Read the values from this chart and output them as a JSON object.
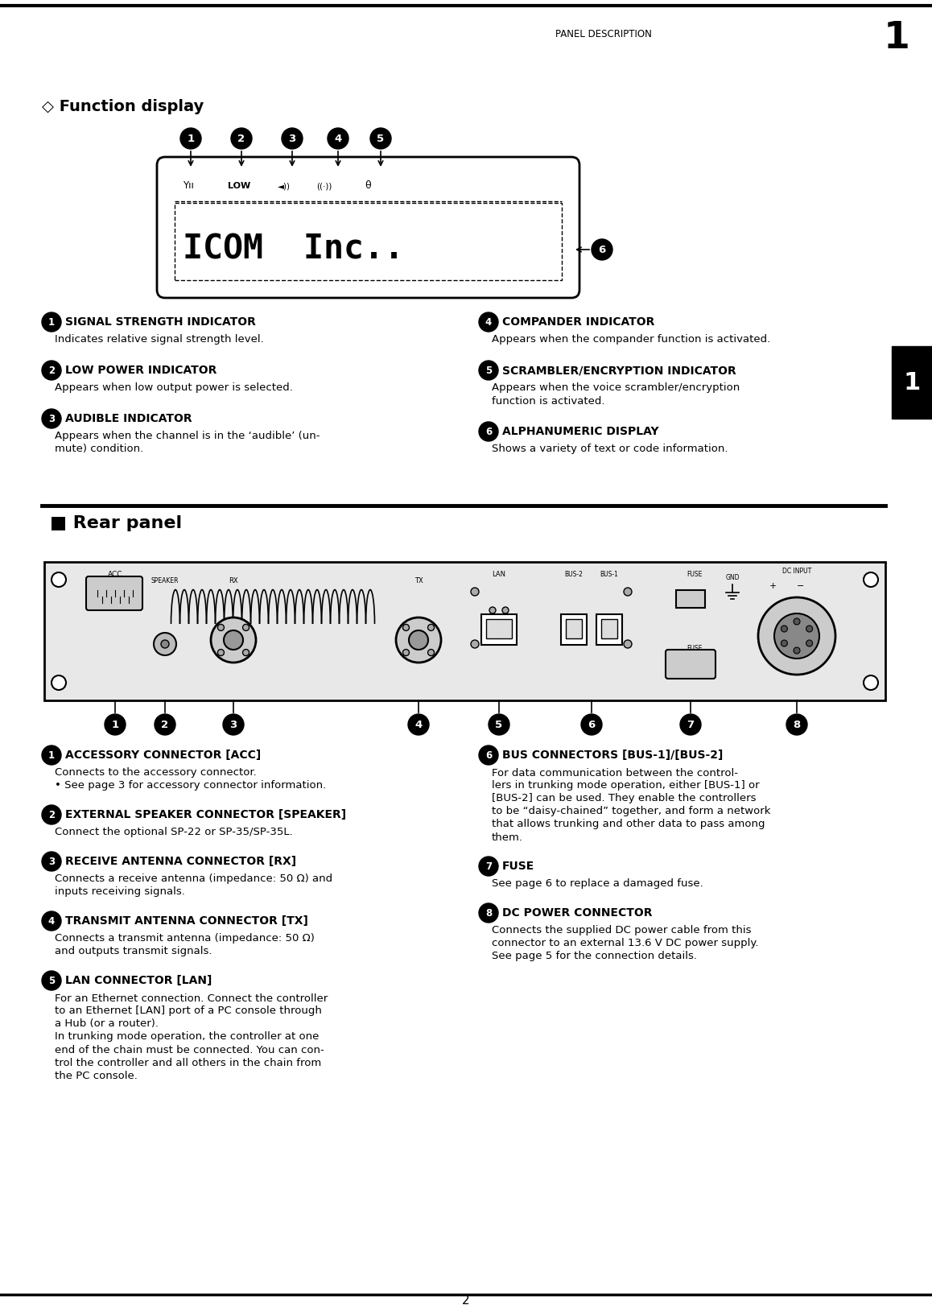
{
  "page_bg": "#ffffff",
  "header_text": "PANEL DESCRIPTION",
  "header_num": "1",
  "section1_title": "◇ Function display",
  "section2_title": "■ Rear panel",
  "footer_num": "2",
  "func_items_left": [
    {
      "num": "1",
      "title": "SIGNAL STRENGTH INDICATOR",
      "body": "Indicates relative signal strength level."
    },
    {
      "num": "2",
      "title": "LOW POWER INDICATOR",
      "body": "Appears when low output power is selected."
    },
    {
      "num": "3",
      "title": "AUDIBLE INDICATOR",
      "body": "Appears when the channel is in the ‘audible’ (un-\nmute) condition."
    }
  ],
  "func_items_right": [
    {
      "num": "4",
      "title": "COMPANDER INDICATOR",
      "body": "Appears when the compander function is activated."
    },
    {
      "num": "5",
      "title": "SCRAMBLER/ENCRYPTION INDICATOR",
      "body": "Appears when the voice scrambler/encryption\nfunction is activated."
    },
    {
      "num": "6",
      "title": "ALPHANUMERIC DISPLAY",
      "body": "Shows a variety of text or code information."
    }
  ],
  "rear_items_left": [
    {
      "num": "1",
      "title": "ACCESSORY CONNECTOR [ACC]",
      "body": "Connects to the accessory connector.\n• See page 3 for accessory connector information."
    },
    {
      "num": "2",
      "title": "EXTERNAL SPEAKER CONNECTOR [SPEAKER]",
      "body": "Connect the optional SP-22 or SP-35/SP-35L."
    },
    {
      "num": "3",
      "title": "RECEIVE ANTENNA CONNECTOR [RX]",
      "body": "Connects a receive antenna (impedance: 50 Ω) and\ninputs receiving signals."
    },
    {
      "num": "4",
      "title": "TRANSMIT ANTENNA CONNECTOR [TX]",
      "body": "Connects a transmit antenna (impedance: 50 Ω)\nand outputs transmit signals."
    },
    {
      "num": "5",
      "title": "LAN CONNECTOR [LAN]",
      "body": "For an Ethernet connection. Connect the controller\nto an Ethernet [LAN] port of a PC console through\na Hub (or a router).\nIn trunking mode operation, the controller at one\nend of the chain must be connected. You can con-\ntrol the controller and all others in the chain from\nthe PC console."
    }
  ],
  "rear_items_right": [
    {
      "num": "6",
      "title": "BUS CONNECTORS [BUS-1]/[BUS-2]",
      "body": "For data communication between the control-\nlers in trunking mode operation, either [BUS-1] or\n[BUS-2] can be used. They enable the controllers\nto be “daisy-chained” together, and form a network\nthat allows trunking and other data to pass among\nthem."
    },
    {
      "num": "7",
      "title": "FUSE",
      "body": "See page 6 to replace a damaged fuse."
    },
    {
      "num": "8",
      "title": "DC POWER CONNECTOR",
      "body": "Connects the supplied DC power cable from this\nconnector to an external 13.6 V DC power supply.\nSee page 5 for the connection details."
    }
  ],
  "tab_color": "#000000",
  "circle_bg": "#000000",
  "circle_fg": "#ffffff"
}
